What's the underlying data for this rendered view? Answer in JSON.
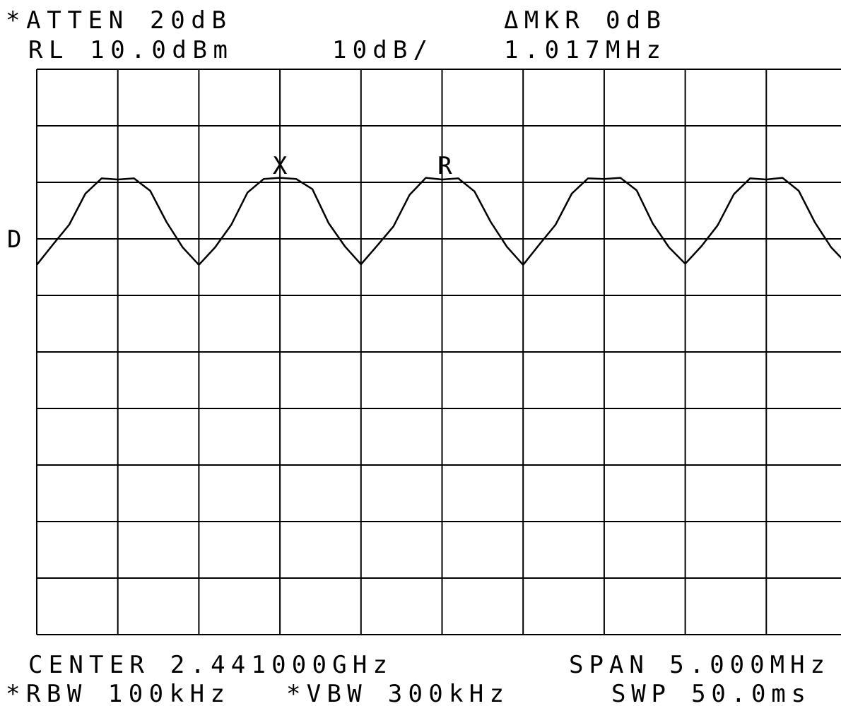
{
  "chart_data": {
    "type": "line",
    "header": {
      "atten": "*ATTEN 20dB",
      "marker": "ΔMKR 0dB",
      "ref_level": "RL 10.0dBm",
      "scale": "10dB/",
      "marker_freq": "1.017MHz"
    },
    "footer": {
      "center": "CENTER 2.441000GHz",
      "span": "SPAN 5.000MHz",
      "rbw": "*RBW 100kHz",
      "vbw": "*VBW 300kHz",
      "sweep": "SWP 50.0ms"
    },
    "display_line": {
      "label": "D",
      "value": -20
    },
    "markers": [
      {
        "text": "X",
        "x": 2.44,
        "y": -8.5
      },
      {
        "text": "R",
        "x": 2.441017,
        "y": -8.5
      }
    ],
    "xlim": [
      2.4385,
      2.4435
    ],
    "xticks": [
      2.4385,
      2.439,
      2.4395,
      2.44,
      2.4405,
      2.441,
      2.4415,
      2.442,
      2.4425,
      2.443,
      2.4435
    ],
    "ylim": [
      -90,
      10
    ],
    "yticks": [
      -90,
      -80,
      -70,
      -60,
      -50,
      -40,
      -30,
      -20,
      -10,
      0,
      10
    ],
    "grid": true,
    "x": [
      2.4385,
      2.4386,
      2.4387,
      2.4388,
      2.4389,
      2.439,
      2.4391,
      2.4392,
      2.4393,
      2.4394,
      2.4395,
      2.4396,
      2.4397,
      2.4398,
      2.4399,
      2.44,
      2.4401,
      2.4402,
      2.4403,
      2.4404,
      2.4405,
      2.4406,
      2.4407,
      2.4408,
      2.4409,
      2.441,
      2.4411,
      2.4412,
      2.4413,
      2.4414,
      2.4415,
      2.4416,
      2.4417,
      2.4418,
      2.4419,
      2.442,
      2.4421,
      2.4422,
      2.4423,
      2.4424,
      2.4425,
      2.4426,
      2.4427,
      2.4428,
      2.4429,
      2.443,
      2.4431,
      2.4432,
      2.4433,
      2.4434,
      2.4435
    ],
    "series": [
      {
        "color": "#000000",
        "values": [
          -24.6,
          -21,
          -17.5,
          -12,
          -9.3,
          -9.5,
          -9.3,
          -11.5,
          -17,
          -21.5,
          -24.6,
          -21.5,
          -17.5,
          -11.8,
          -9.4,
          -9.2,
          -9.4,
          -11.2,
          -17.2,
          -21.3,
          -24.5,
          -21.2,
          -17.8,
          -12.2,
          -9.2,
          -9.5,
          -9.3,
          -11.6,
          -17,
          -21.4,
          -24.6,
          -21,
          -17.5,
          -12,
          -9.3,
          -9.4,
          -9.2,
          -11.4,
          -17.3,
          -21.5,
          -24.4,
          -21.3,
          -17.6,
          -12.1,
          -9.3,
          -9.5,
          -9.2,
          -11.5,
          -17.1,
          -21.5,
          -24.5
        ]
      }
    ]
  }
}
